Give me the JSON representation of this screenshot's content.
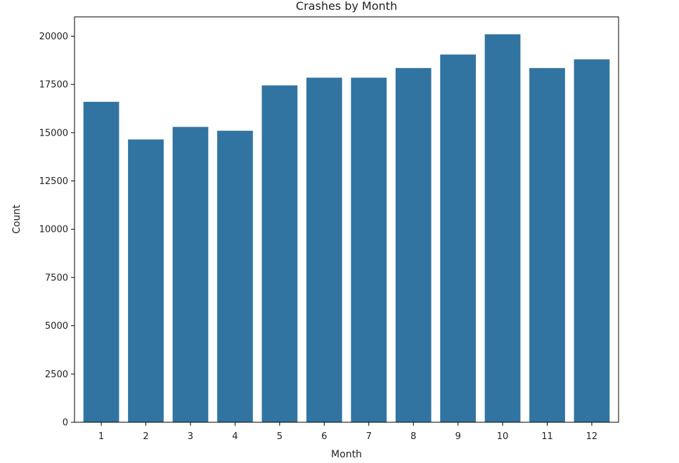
{
  "chart_data": {
    "type": "bar",
    "title": "Crashes by Month",
    "xlabel": "Month",
    "ylabel": "Count",
    "categories": [
      "1",
      "2",
      "3",
      "4",
      "5",
      "6",
      "7",
      "8",
      "9",
      "10",
      "11",
      "12"
    ],
    "values": [
      16600,
      14650,
      15300,
      15100,
      17450,
      17850,
      17850,
      18350,
      19050,
      20100,
      18350,
      18800
    ],
    "ylim": [
      0,
      21000
    ],
    "yticks": [
      0,
      2500,
      5000,
      7500,
      10000,
      12500,
      15000,
      17500,
      20000
    ],
    "bar_color": "#3274a1",
    "grid": false,
    "legend": "none"
  }
}
